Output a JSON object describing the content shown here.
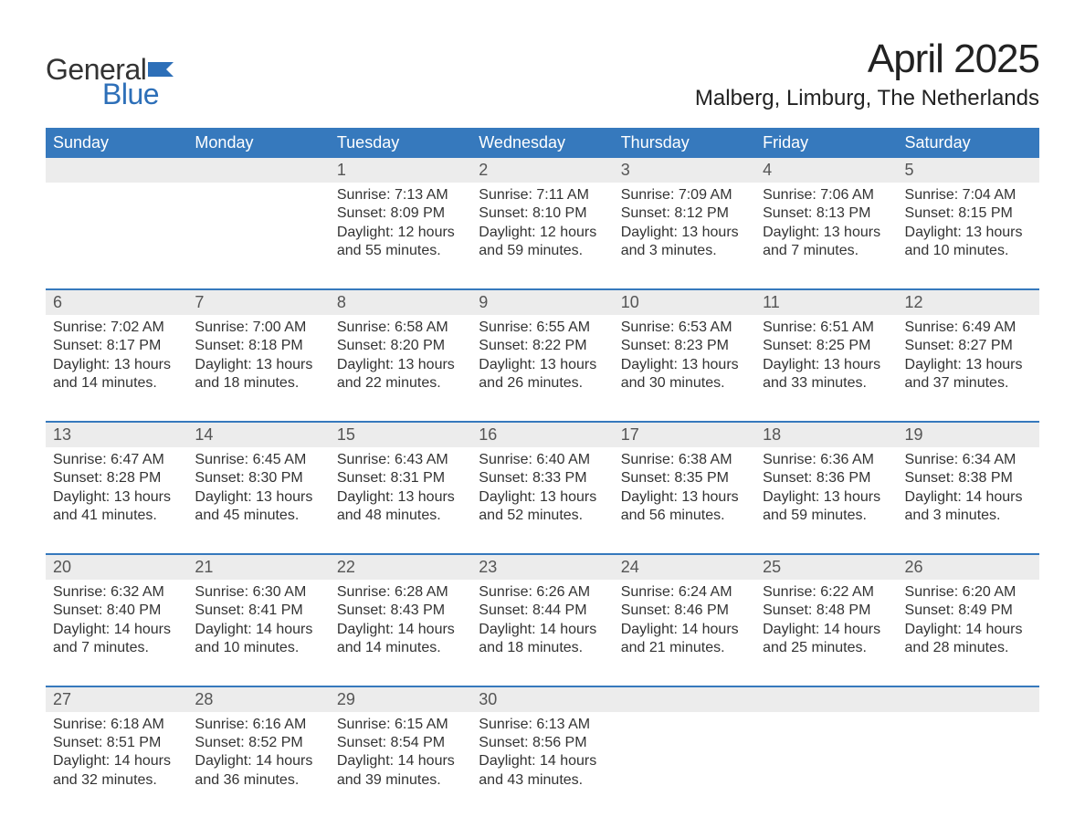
{
  "brand": {
    "word1": "General",
    "word2": "Blue",
    "flag_color": "#2d6fb8",
    "word1_color": "#333333",
    "word2_color": "#2d6fb8"
  },
  "title": "April 2025",
  "location": "Malberg, Limburg, The Netherlands",
  "colors": {
    "header_bg": "#3679bd",
    "header_text": "#ffffff",
    "daynum_bg": "#ececec",
    "week_border": "#3679bd",
    "body_text": "#333333",
    "daynum_text": "#555555",
    "page_bg": "#ffffff"
  },
  "days_of_week": [
    "Sunday",
    "Monday",
    "Tuesday",
    "Wednesday",
    "Thursday",
    "Friday",
    "Saturday"
  ],
  "weeks": [
    {
      "nums": [
        "",
        "",
        "1",
        "2",
        "3",
        "4",
        "5"
      ],
      "cells": [
        "",
        "",
        "Sunrise: 7:13 AM\nSunset: 8:09 PM\nDaylight: 12 hours and 55 minutes.",
        "Sunrise: 7:11 AM\nSunset: 8:10 PM\nDaylight: 12 hours and 59 minutes.",
        "Sunrise: 7:09 AM\nSunset: 8:12 PM\nDaylight: 13 hours and 3 minutes.",
        "Sunrise: 7:06 AM\nSunset: 8:13 PM\nDaylight: 13 hours and 7 minutes.",
        "Sunrise: 7:04 AM\nSunset: 8:15 PM\nDaylight: 13 hours and 10 minutes."
      ]
    },
    {
      "nums": [
        "6",
        "7",
        "8",
        "9",
        "10",
        "11",
        "12"
      ],
      "cells": [
        "Sunrise: 7:02 AM\nSunset: 8:17 PM\nDaylight: 13 hours and 14 minutes.",
        "Sunrise: 7:00 AM\nSunset: 8:18 PM\nDaylight: 13 hours and 18 minutes.",
        "Sunrise: 6:58 AM\nSunset: 8:20 PM\nDaylight: 13 hours and 22 minutes.",
        "Sunrise: 6:55 AM\nSunset: 8:22 PM\nDaylight: 13 hours and 26 minutes.",
        "Sunrise: 6:53 AM\nSunset: 8:23 PM\nDaylight: 13 hours and 30 minutes.",
        "Sunrise: 6:51 AM\nSunset: 8:25 PM\nDaylight: 13 hours and 33 minutes.",
        "Sunrise: 6:49 AM\nSunset: 8:27 PM\nDaylight: 13 hours and 37 minutes."
      ]
    },
    {
      "nums": [
        "13",
        "14",
        "15",
        "16",
        "17",
        "18",
        "19"
      ],
      "cells": [
        "Sunrise: 6:47 AM\nSunset: 8:28 PM\nDaylight: 13 hours and 41 minutes.",
        "Sunrise: 6:45 AM\nSunset: 8:30 PM\nDaylight: 13 hours and 45 minutes.",
        "Sunrise: 6:43 AM\nSunset: 8:31 PM\nDaylight: 13 hours and 48 minutes.",
        "Sunrise: 6:40 AM\nSunset: 8:33 PM\nDaylight: 13 hours and 52 minutes.",
        "Sunrise: 6:38 AM\nSunset: 8:35 PM\nDaylight: 13 hours and 56 minutes.",
        "Sunrise: 6:36 AM\nSunset: 8:36 PM\nDaylight: 13 hours and 59 minutes.",
        "Sunrise: 6:34 AM\nSunset: 8:38 PM\nDaylight: 14 hours and 3 minutes."
      ]
    },
    {
      "nums": [
        "20",
        "21",
        "22",
        "23",
        "24",
        "25",
        "26"
      ],
      "cells": [
        "Sunrise: 6:32 AM\nSunset: 8:40 PM\nDaylight: 14 hours and 7 minutes.",
        "Sunrise: 6:30 AM\nSunset: 8:41 PM\nDaylight: 14 hours and 10 minutes.",
        "Sunrise: 6:28 AM\nSunset: 8:43 PM\nDaylight: 14 hours and 14 minutes.",
        "Sunrise: 6:26 AM\nSunset: 8:44 PM\nDaylight: 14 hours and 18 minutes.",
        "Sunrise: 6:24 AM\nSunset: 8:46 PM\nDaylight: 14 hours and 21 minutes.",
        "Sunrise: 6:22 AM\nSunset: 8:48 PM\nDaylight: 14 hours and 25 minutes.",
        "Sunrise: 6:20 AM\nSunset: 8:49 PM\nDaylight: 14 hours and 28 minutes."
      ]
    },
    {
      "nums": [
        "27",
        "28",
        "29",
        "30",
        "",
        "",
        ""
      ],
      "cells": [
        "Sunrise: 6:18 AM\nSunset: 8:51 PM\nDaylight: 14 hours and 32 minutes.",
        "Sunrise: 6:16 AM\nSunset: 8:52 PM\nDaylight: 14 hours and 36 minutes.",
        "Sunrise: 6:15 AM\nSunset: 8:54 PM\nDaylight: 14 hours and 39 minutes.",
        "Sunrise: 6:13 AM\nSunset: 8:56 PM\nDaylight: 14 hours and 43 minutes.",
        "",
        "",
        ""
      ]
    }
  ]
}
